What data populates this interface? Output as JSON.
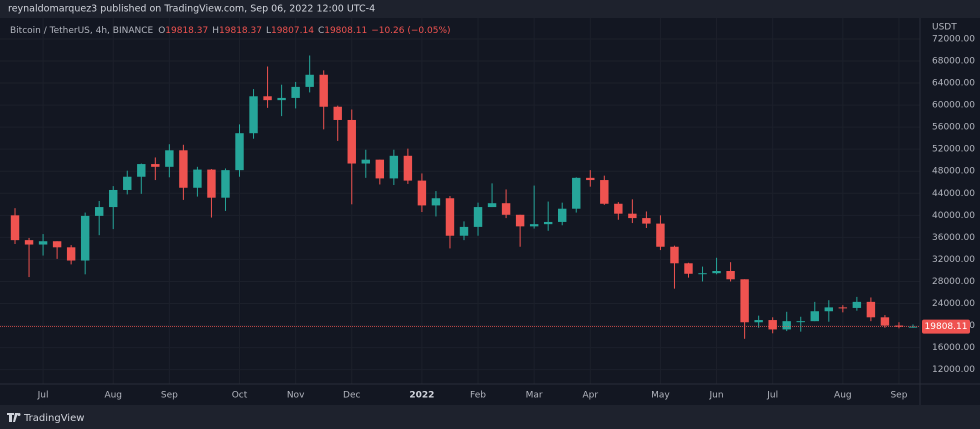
{
  "header": {
    "text": "reynaldomarquez3 published on TradingView.com, Sep 06, 2022 12:00 UTC-4"
  },
  "chart_data": {
    "type": "candlestick",
    "legend": {
      "symbol": "Bitcoin / TetherUS, 4h, BINANCE",
      "items": [
        {
          "label": "O",
          "value": "19818.37"
        },
        {
          "label": "H",
          "value": "19818.37"
        },
        {
          "label": "L",
          "value": "19807.14"
        },
        {
          "label": "C",
          "value": "19808.11"
        }
      ],
      "change": "−10.26 (−0.05%)"
    },
    "y_unit": "USDT",
    "categories": [
      null,
      null,
      "Jul",
      null,
      null,
      null,
      null,
      "Aug",
      null,
      null,
      null,
      "Sep",
      null,
      null,
      null,
      null,
      "Oct",
      null,
      null,
      null,
      "Nov",
      null,
      null,
      null,
      "Dec",
      null,
      null,
      null,
      null,
      "2022",
      null,
      null,
      null,
      "Feb",
      null,
      null,
      null,
      "Mar",
      null,
      null,
      null,
      "Apr",
      null,
      null,
      null,
      null,
      "May",
      null,
      null,
      null,
      "Jun",
      null,
      null,
      null,
      "Jul",
      null,
      null,
      null,
      null,
      "Aug",
      null,
      null,
      null,
      "Sep",
      null
    ],
    "open": [
      40000,
      35500,
      34700,
      35300,
      34200,
      31800,
      39900,
      41500,
      44600,
      47000,
      49300,
      48800,
      51800,
      45000,
      48300,
      43200,
      48200,
      54900,
      61600,
      60900,
      61300,
      63300,
      65500,
      59700,
      57300,
      49400,
      50100,
      46700,
      50800,
      46300,
      41800,
      43100,
      36300,
      37900,
      41500,
      42200,
      40100,
      38000,
      38400,
      38800,
      41200,
      46800,
      46400,
      42100,
      40300,
      39500,
      38500,
      34300,
      31300,
      29400,
      29500,
      29900,
      28400,
      20600,
      21000,
      19300,
      20800,
      20800,
      22600,
      23300,
      23200,
      24300,
      21500,
      20000,
      19800
    ],
    "high": [
      41300,
      35900,
      36600,
      35300,
      34600,
      40500,
      42600,
      45300,
      48100,
      49400,
      50500,
      52900,
      52800,
      48800,
      48400,
      48500,
      56500,
      62900,
      67000,
      63700,
      64200,
      69000,
      66300,
      59900,
      59200,
      51900,
      50100,
      51900,
      52100,
      47600,
      44400,
      43500,
      38900,
      42300,
      45800,
      44700,
      40100,
      45400,
      42500,
      42300,
      46900,
      48200,
      47200,
      42400,
      42900,
      40700,
      40000,
      34500,
      31400,
      30700,
      32300,
      31500,
      28400,
      21800,
      21500,
      22500,
      21600,
      24300,
      24600,
      23700,
      25200,
      25100,
      21900,
      20600,
      20200
    ],
    "low": [
      34800,
      28800,
      32700,
      32100,
      31100,
      29300,
      36400,
      37500,
      43800,
      43900,
      46400,
      46900,
      42800,
      43400,
      39600,
      40800,
      47000,
      53900,
      59500,
      58000,
      59400,
      62300,
      55600,
      53500,
      42000,
      46800,
      45600,
      45500,
      45700,
      40600,
      39800,
      34000,
      35500,
      36300,
      41500,
      39500,
      34300,
      37600,
      37200,
      38200,
      40500,
      45200,
      41900,
      39200,
      38600,
      37700,
      33700,
      26700,
      28700,
      28000,
      29300,
      28000,
      17600,
      19600,
      18600,
      19000,
      18900,
      20800,
      20700,
      22400,
      22700,
      20800,
      19600,
      19500,
      19600
    ],
    "close": [
      35500,
      34700,
      35300,
      34200,
      31800,
      39900,
      41500,
      44600,
      47000,
      49300,
      48800,
      51800,
      45000,
      48300,
      43200,
      48200,
      54900,
      61600,
      60900,
      61300,
      63300,
      65500,
      59700,
      57300,
      49400,
      50100,
      46700,
      50800,
      46300,
      41800,
      43100,
      36300,
      37900,
      41500,
      42200,
      40100,
      38000,
      38400,
      38800,
      41200,
      46800,
      46400,
      42100,
      40300,
      39500,
      38500,
      34300,
      31300,
      29400,
      29500,
      29900,
      28400,
      20600,
      21000,
      19300,
      20800,
      20800,
      22600,
      23300,
      23200,
      24300,
      21500,
      20000,
      19800,
      19808.11
    ],
    "up_color": "#26a69a",
    "down_color": "#ef5350",
    "ylim": [
      9400,
      75800
    ],
    "yticks": [
      {
        "value": 12000,
        "label": "12000.00"
      },
      {
        "value": 16000,
        "label": "16000.00"
      },
      {
        "value": 20000,
        "label": "20000.00"
      },
      {
        "value": 24000,
        "label": "24000.00"
      },
      {
        "value": 28000,
        "label": "28000.00"
      },
      {
        "value": 32000,
        "label": "32000.00"
      },
      {
        "value": 36000,
        "label": "36000.00"
      },
      {
        "value": 40000,
        "label": "40000.00"
      },
      {
        "value": 44000,
        "label": "44000.00"
      },
      {
        "value": 48000,
        "label": "48000.00"
      },
      {
        "value": 52000,
        "label": "52000.00"
      },
      {
        "value": 56000,
        "label": "56000.00"
      },
      {
        "value": 60000,
        "label": "60000.00"
      },
      {
        "value": 64000,
        "label": "64000.00"
      },
      {
        "value": 68000,
        "label": "68000.00"
      },
      {
        "value": 72000,
        "label": "72000.00"
      }
    ],
    "grid": true,
    "last_price_line": true
  },
  "footer": {
    "brand": "TradingView"
  }
}
